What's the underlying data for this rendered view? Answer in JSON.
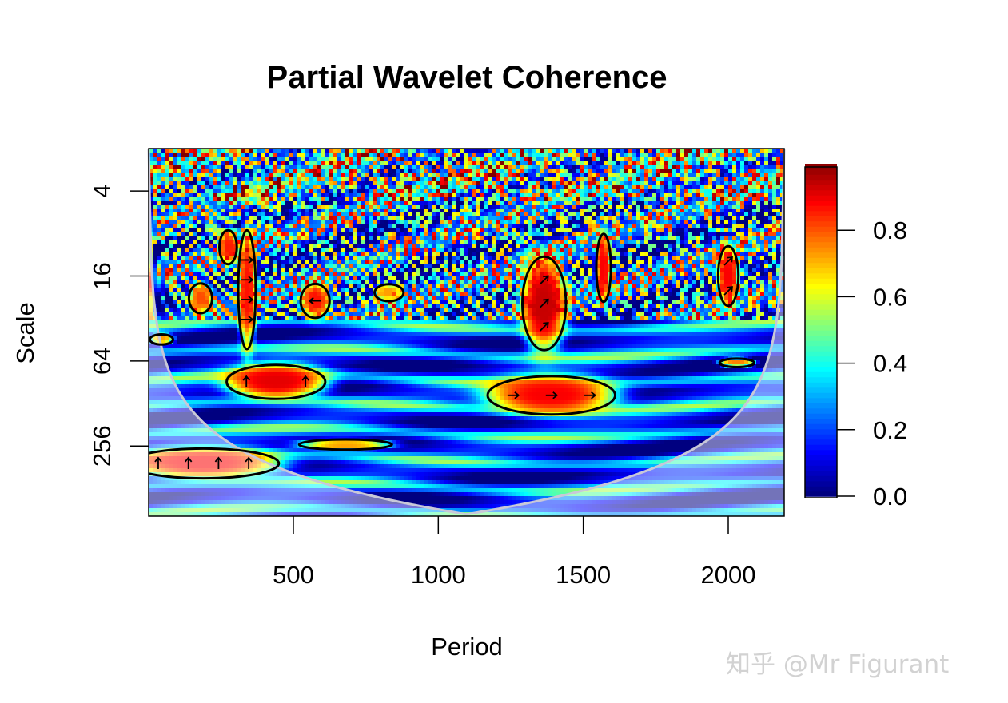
{
  "chart_data": {
    "type": "heatmap",
    "title": "Partial Wavelet Coherence",
    "xlabel": "Period",
    "ylabel": "Scale",
    "xlim": [
      1,
      2193
    ],
    "ylim": [
      2,
      804
    ],
    "y_scale": "log2",
    "y_reversed": true,
    "x_ticks": [
      500,
      1000,
      1500,
      2000
    ],
    "x_tick_labels": [
      "500",
      "1000",
      "1500",
      "2000"
    ],
    "y_ticks": [
      4,
      16,
      64,
      256
    ],
    "y_tick_labels": [
      "4",
      "16",
      "64",
      "256"
    ],
    "colorbar": {
      "range": [
        0,
        1
      ],
      "ticks": [
        0.0,
        0.2,
        0.4,
        0.6,
        0.8
      ],
      "tick_labels": [
        "0.0",
        "0.2",
        "0.4",
        "0.6",
        "0.8"
      ],
      "colormap": "jet",
      "placement": "right"
    },
    "cone_of_influence": {
      "peak_period": 1097,
      "peak_scale": 780,
      "line_color": "#c8c8d8",
      "outside_shaded": true
    },
    "significant_regions": [
      {
        "period": 440,
        "scale": 90,
        "period_halfwidth": 170,
        "octave_halfheight": 0.4,
        "coherence": 0.9,
        "phase_arrow": "up"
      },
      {
        "period": 190,
        "scale": 340,
        "period_halfwidth": 260,
        "octave_halfheight": 0.35,
        "coherence": 0.88,
        "phase_arrow": "up"
      },
      {
        "period": 680,
        "scale": 250,
        "period_halfwidth": 160,
        "octave_halfheight": 0.12,
        "coherence": 0.72,
        "phase_arrow": ""
      },
      {
        "period": 1390,
        "scale": 112,
        "period_halfwidth": 220,
        "octave_halfheight": 0.45,
        "coherence": 0.88,
        "phase_arrow": "right"
      },
      {
        "period": 1365,
        "scale": 25,
        "period_halfwidth": 75,
        "octave_halfheight": 1.1,
        "coherence": 0.93,
        "phase_arrow": "northeast"
      },
      {
        "period": 340,
        "scale": 20,
        "period_halfwidth": 30,
        "octave_halfheight": 1.4,
        "coherence": 0.86,
        "phase_arrow": "right"
      },
      {
        "period": 180,
        "scale": 23,
        "period_halfwidth": 40,
        "octave_halfheight": 0.35,
        "coherence": 0.8,
        "phase_arrow": ""
      },
      {
        "period": 575,
        "scale": 24,
        "period_halfwidth": 50,
        "octave_halfheight": 0.4,
        "coherence": 0.86,
        "phase_arrow": "left"
      },
      {
        "period": 2000,
        "scale": 16,
        "period_halfwidth": 35,
        "octave_halfheight": 0.7,
        "coherence": 0.88,
        "phase_arrow": "northeast"
      },
      {
        "period": 1570,
        "scale": 14,
        "period_halfwidth": 25,
        "octave_halfheight": 0.8,
        "coherence": 0.88,
        "phase_arrow": ""
      },
      {
        "period": 275,
        "scale": 10,
        "period_halfwidth": 30,
        "octave_halfheight": 0.4,
        "coherence": 0.85,
        "phase_arrow": ""
      },
      {
        "period": 2030,
        "scale": 66,
        "period_halfwidth": 60,
        "octave_halfheight": 0.1,
        "coherence": 0.75,
        "phase_arrow": ""
      },
      {
        "period": 830,
        "scale": 21,
        "period_halfwidth": 50,
        "octave_halfheight": 0.2,
        "coherence": 0.72,
        "phase_arrow": ""
      },
      {
        "period": 45,
        "scale": 45,
        "period_halfwidth": 40,
        "octave_halfheight": 0.12,
        "coherence": 0.72,
        "phase_arrow": ""
      }
    ],
    "grid": false
  },
  "watermark": "知乎 @Mr Figurant"
}
